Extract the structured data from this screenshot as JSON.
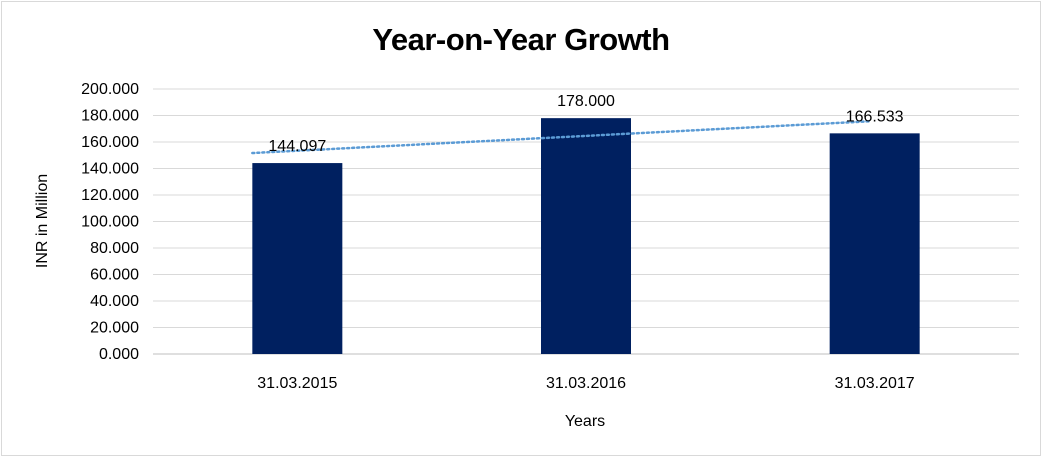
{
  "chart_data": {
    "type": "bar",
    "title": "Year-on-Year Growth",
    "xlabel": "Years",
    "ylabel": "INR in Million",
    "categories": [
      "31.03.2015",
      "31.03.2016",
      "31.03.2017"
    ],
    "values": [
      144.097,
      178.0,
      166.533
    ],
    "data_labels": [
      "144.097",
      "178.000",
      "166.533"
    ],
    "ylim": [
      0,
      200
    ],
    "yticks": [
      "0.000",
      "20.000",
      "40.000",
      "60.000",
      "80.000",
      "100.000",
      "120.000",
      "140.000",
      "160.000",
      "180.000",
      "200.000"
    ],
    "grid": true,
    "trendline": "linear",
    "legend": "none",
    "bar_color": "#002060",
    "trendline_color": "#5b9bd5",
    "gridline_color": "#d9d9d9"
  }
}
